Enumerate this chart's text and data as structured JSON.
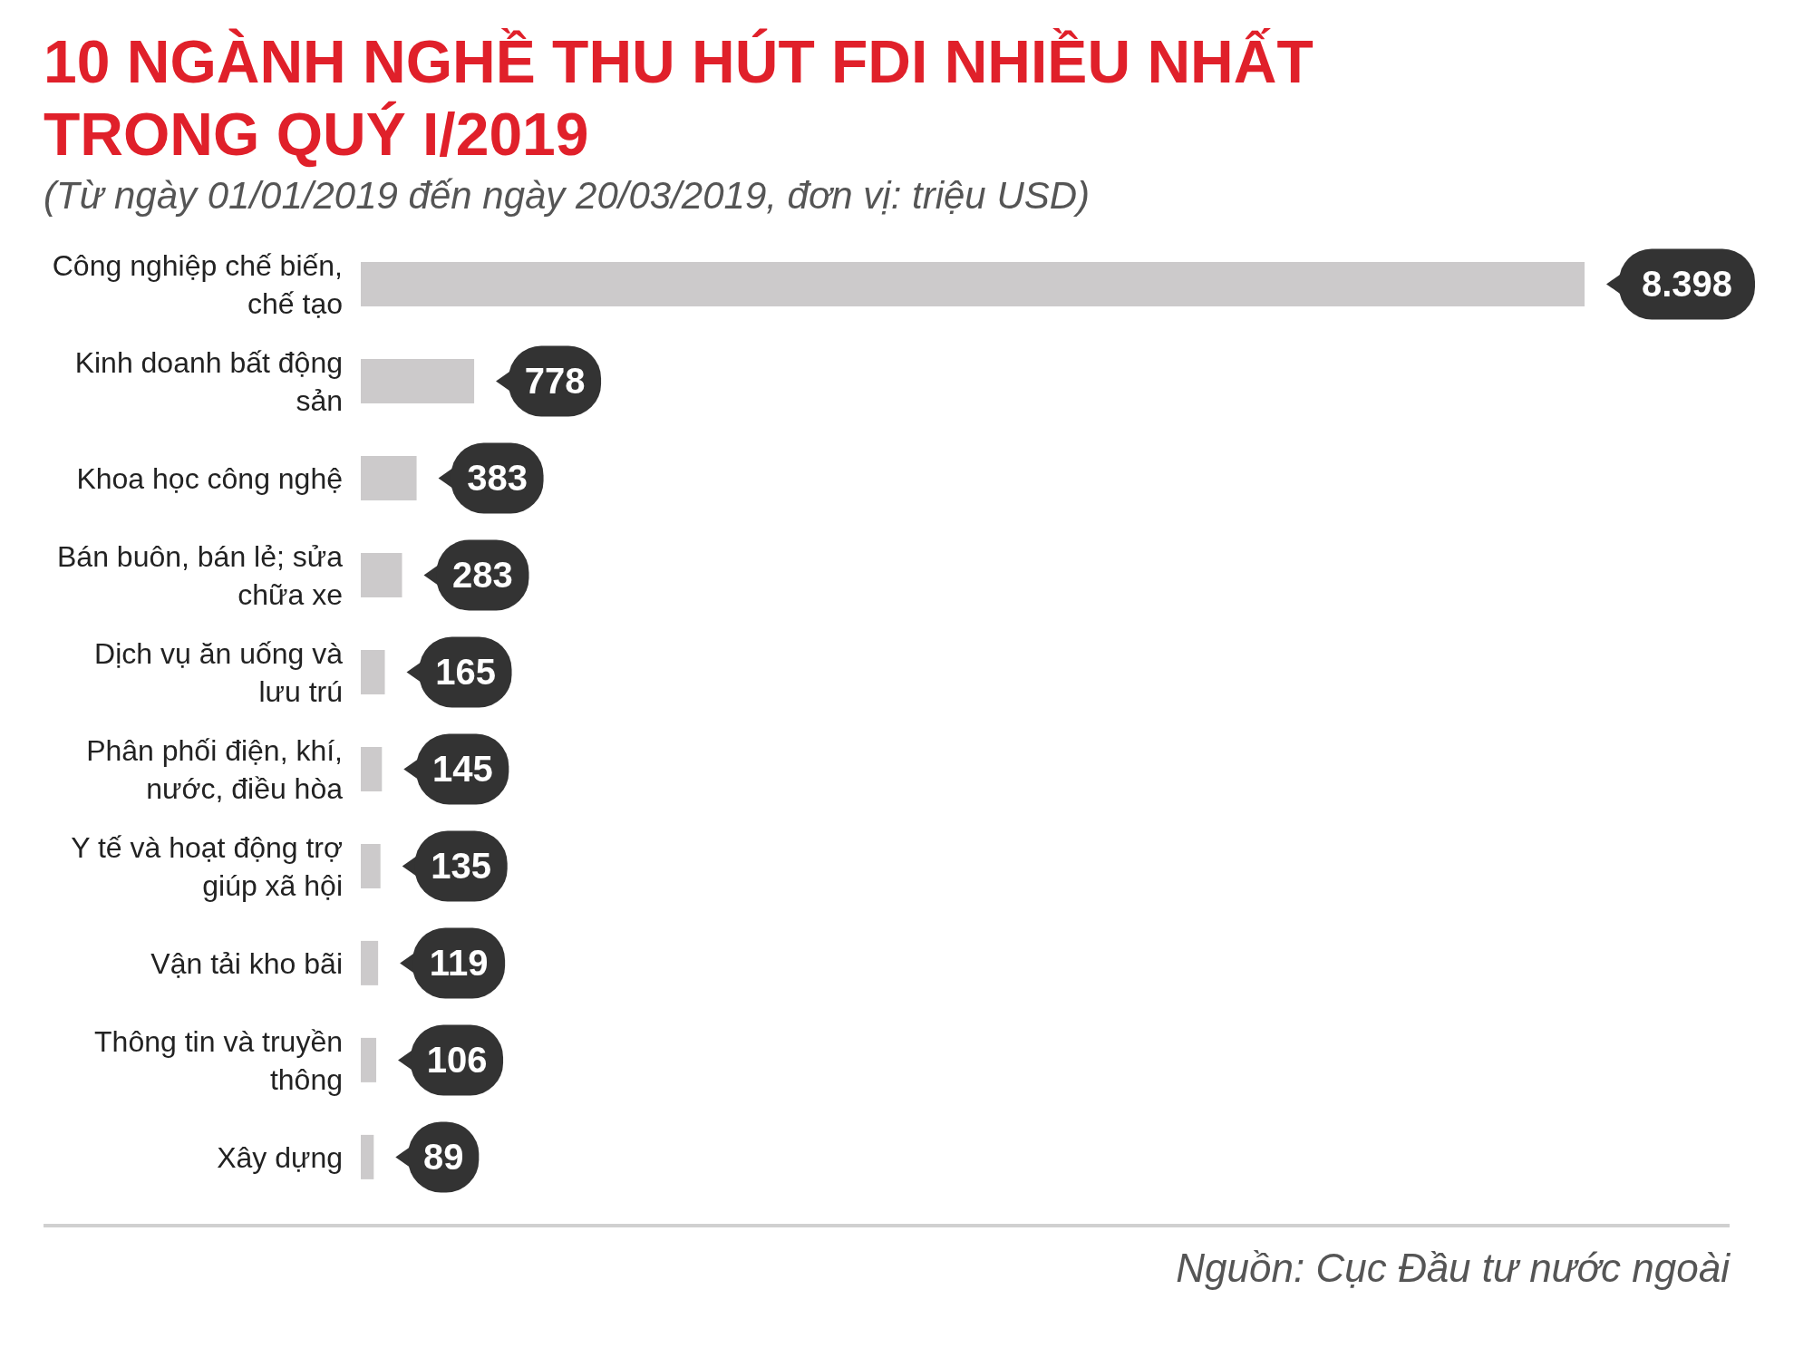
{
  "chart_data": {
    "type": "bar",
    "orientation": "horizontal",
    "title": "10 NGÀNH NGHỀ THU HÚT FDI NHIỀU NHẤT TRONG QUÝ I/2019",
    "subtitle": "(Từ ngày 01/01/2019 đến ngày 20/03/2019, đơn vị: triệu USD)",
    "categories": [
      "Công nghiệp chế biến, chế tạo",
      "Kinh doanh bất động sản",
      "Khoa học công nghệ",
      "Bán buôn, bán lẻ; sửa chữa xe",
      "Dịch vụ ăn uống và lưu trú",
      "Phân phối điện, khí, nước, điều hòa",
      "Y tế và hoạt động trợ giúp xã hội",
      "Vận tải kho bãi",
      "Thông tin và truyền thông",
      "Xây dựng"
    ],
    "values": [
      8398,
      778,
      383,
      283,
      165,
      145,
      135,
      119,
      106,
      89
    ],
    "value_labels": [
      "8.398",
      "778",
      "383",
      "283",
      "165",
      "145",
      "135",
      "119",
      "106",
      "89"
    ],
    "color": "#cccacb",
    "annotations": [
      "Nguồn: Cục Đầu tư nước ngoài"
    ]
  }
}
